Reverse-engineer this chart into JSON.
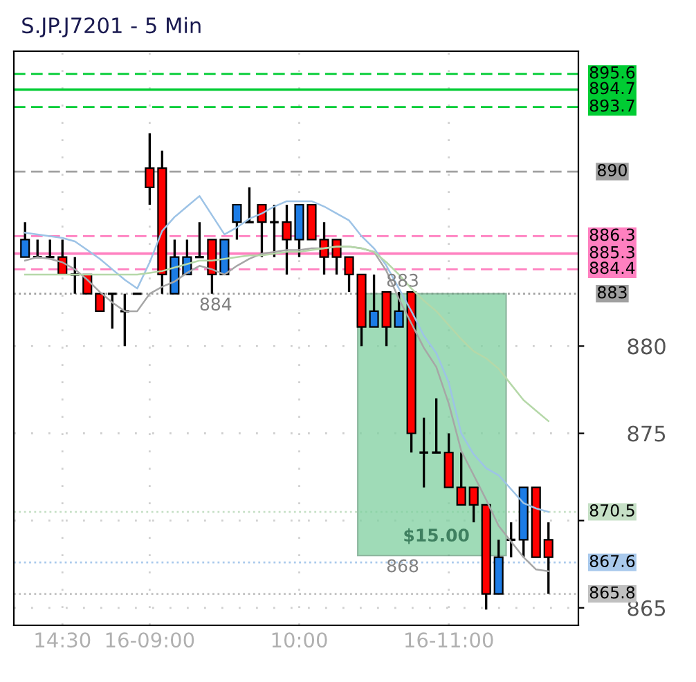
{
  "chart_data": {
    "type": "candlestick",
    "title": "S.JP.J7201 - 5 Min",
    "categories": [
      null,
      null,
      null,
      "14:30",
      null,
      null,
      null,
      null,
      null,
      null,
      "16-09:00",
      null,
      null,
      null,
      null,
      null,
      null,
      null,
      null,
      null,
      null,
      null,
      "10:00",
      null,
      null,
      null,
      null,
      null,
      null,
      null,
      null,
      null,
      null,
      null,
      "16-11:00",
      null,
      null,
      null,
      null,
      null,
      null,
      null,
      null
    ],
    "ohlc": [
      [
        885.1,
        887.1,
        885.1,
        886.1
      ],
      [
        885.1,
        886.1,
        885.1,
        885.1
      ],
      [
        885.1,
        886.1,
        885.1,
        885.1
      ],
      [
        885.1,
        886.1,
        884.1,
        884.1
      ],
      [
        884.1,
        885.1,
        883.0,
        884.1
      ],
      [
        884.1,
        884.1,
        883.0,
        883.0
      ],
      [
        883.0,
        883.0,
        882.0,
        882.0
      ],
      [
        883.0,
        883.0,
        881.0,
        883.0
      ],
      [
        882.0,
        883.0,
        880.0,
        882.0
      ],
      [
        883.0,
        883.0,
        883.0,
        883.0
      ],
      [
        890.2,
        892.2,
        888.1,
        889.1
      ],
      [
        890.2,
        891.2,
        883.0,
        884.1
      ],
      [
        883.0,
        886.1,
        883.0,
        885.1
      ],
      [
        884.1,
        886.1,
        884.1,
        885.1
      ],
      [
        885.1,
        887.1,
        885.1,
        885.1
      ],
      [
        886.1,
        886.1,
        883.0,
        884.1
      ],
      [
        884.1,
        886.1,
        884.1,
        886.1
      ],
      [
        887.1,
        888.1,
        886.1,
        888.1
      ],
      [
        887.1,
        889.1,
        887.1,
        887.1
      ],
      [
        888.1,
        888.1,
        885.1,
        887.1
      ],
      [
        887.1,
        888.1,
        885.1,
        887.1
      ],
      [
        887.1,
        888.1,
        884.1,
        886.1
      ],
      [
        886.1,
        888.1,
        885.1,
        888.1
      ],
      [
        888.1,
        888.1,
        886.1,
        886.1
      ],
      [
        886.1,
        887.1,
        884.1,
        885.1
      ],
      [
        886.1,
        886.1,
        884.1,
        885.1
      ],
      [
        885.1,
        885.1,
        883.1,
        884.1
      ],
      [
        884.1,
        884.1,
        880.0,
        881.1
      ],
      [
        881.1,
        884.1,
        881.1,
        882.0
      ],
      [
        883.1,
        883.1,
        880.0,
        881.1
      ],
      [
        881.1,
        883.1,
        881.1,
        882.0
      ],
      [
        883.1,
        883.1,
        873.9,
        875.0
      ],
      [
        873.9,
        875.9,
        871.9,
        873.9
      ],
      [
        873.9,
        877.0,
        873.9,
        873.9
      ],
      [
        873.9,
        875.0,
        871.9,
        871.9
      ],
      [
        871.9,
        873.9,
        870.9,
        870.9
      ],
      [
        871.9,
        871.9,
        869.9,
        870.9
      ],
      [
        870.9,
        870.9,
        864.9,
        865.8
      ],
      [
        865.8,
        868.9,
        865.8,
        867.9
      ],
      [
        868.9,
        869.9,
        867.9,
        868.9
      ],
      [
        868.9,
        871.9,
        867.9,
        871.9
      ],
      [
        871.9,
        871.9,
        867.9,
        867.9
      ],
      [
        868.9,
        869.9,
        865.8,
        867.9
      ]
    ],
    "colors": [
      "#1c7ce6",
      "#000000",
      "#000000",
      "#ff0000",
      "#000000",
      "#ff0000",
      "#ff0000",
      "#000000",
      "#000000",
      "#000000",
      "#ff0000",
      "#ff0000",
      "#1c7ce6",
      "#1c7ce6",
      "#000000",
      "#ff0000",
      "#1c7ce6",
      "#1c7ce6",
      "#000000",
      "#ff0000",
      "#000000",
      "#ff0000",
      "#1c7ce6",
      "#ff0000",
      "#ff0000",
      "#ff0000",
      "#ff0000",
      "#ff0000",
      "#1c7ce6",
      "#ff0000",
      "#1c7ce6",
      "#ff0000",
      "#000000",
      "#000000",
      "#ff0000",
      "#ff0000",
      "#ff0000",
      "#ff0000",
      "#1c7ce6",
      "#000000",
      "#1c7ce6",
      "#ff0000",
      "#ff0000"
    ],
    "series": [
      {
        "type": "line",
        "color": "#9dc3e6",
        "values": [
          886.5,
          886.4,
          886.3,
          886.2,
          886.0,
          885.5,
          885.0,
          884.4,
          883.8,
          883.3,
          884.8,
          886.6,
          887.4,
          888.0,
          888.6,
          887.5,
          886.4,
          886.8,
          887.3,
          887.6,
          888.0,
          888.3,
          888.3,
          888.3,
          888.0,
          887.6,
          887.2,
          886.3,
          885.6,
          884.6,
          883.3,
          882.0,
          880.6,
          879.6,
          877.9,
          875.0,
          873.8,
          873.0,
          872.6,
          871.8,
          871.0,
          870.7,
          870.5
        ]
      },
      {
        "type": "line",
        "color": "#a6a6a6",
        "values": [
          884.9,
          885.1,
          885.0,
          884.8,
          884.4,
          883.8,
          883.1,
          882.5,
          882.0,
          882.0,
          883.0,
          883.4,
          883.7,
          884.2,
          884.6,
          884.4,
          884.1,
          884.6,
          885.0,
          885.3,
          885.4,
          885.5,
          885.5,
          885.6,
          885.6,
          885.7,
          885.7,
          885.6,
          885.4,
          884.3,
          882.7,
          881.3,
          879.9,
          878.8,
          876.7,
          874.0,
          872.6,
          871.2,
          869.7,
          868.8,
          867.9,
          867.2,
          867.1
        ]
      },
      {
        "type": "line",
        "color": "#b5d8a8",
        "values": [
          884.1,
          884.1,
          884.1,
          884.1,
          884.1,
          884.1,
          884.1,
          884.1,
          884.1,
          884.1,
          884.2,
          884.3,
          884.5,
          884.7,
          884.9,
          884.9,
          885.0,
          885.1,
          885.2,
          885.2,
          885.3,
          885.4,
          885.4,
          885.5,
          885.6,
          885.7,
          885.7,
          885.6,
          885.4,
          884.8,
          884.1,
          883.3,
          882.6,
          882.0,
          881.2,
          880.4,
          879.7,
          879.3,
          878.7,
          877.8,
          876.9,
          876.3,
          875.7
        ]
      }
    ],
    "ylim": [
      864,
      896.9
    ],
    "yticks": [
      865,
      {
        "value": 870,
        "label": null
      },
      875,
      880
    ],
    "grid": true,
    "ref_lines": [
      {
        "axis": "y",
        "value": 895.6,
        "label": "895.6",
        "color": "#00cc33",
        "line_style": "dashed"
      },
      {
        "axis": "y",
        "value": 894.7,
        "label": "894.7",
        "color": "#00cc33",
        "line_style": "solid"
      },
      {
        "axis": "y",
        "value": 893.7,
        "label": "893.7",
        "color": "#00cc33",
        "line_style": "dashed"
      },
      {
        "axis": "y",
        "value": 890,
        "label": "890",
        "color": "#a0a0a0",
        "line_style": "dashed"
      },
      {
        "axis": "y",
        "value": 886.3,
        "label": "886.3",
        "color": "#ff80c0",
        "line_style": "dashed"
      },
      {
        "axis": "y",
        "value": 885.3,
        "label": "885.3",
        "color": "#ff80c0",
        "line_style": "solid"
      },
      {
        "axis": "y",
        "value": 884.4,
        "label": "884.4",
        "color": "#ff80c0",
        "line_style": "dashed"
      },
      {
        "axis": "y",
        "value": 883,
        "label": "883",
        "color": "#a0a0a0",
        "line_style": "dotted"
      },
      {
        "axis": "y",
        "value": 870.5,
        "label": "870.5",
        "color": "#c6e0c6",
        "line_style": "dotted"
      },
      {
        "axis": "y",
        "value": 867.6,
        "label": "867.6",
        "color": "#a9c9ec",
        "line_style": "dotted"
      },
      {
        "axis": "y",
        "value": 865.8,
        "label": "865.8",
        "color": "#c0c0c0",
        "line_style": "dotted"
      }
    ],
    "annotations": [
      "884",
      "883",
      "868",
      "$15.00"
    ]
  }
}
